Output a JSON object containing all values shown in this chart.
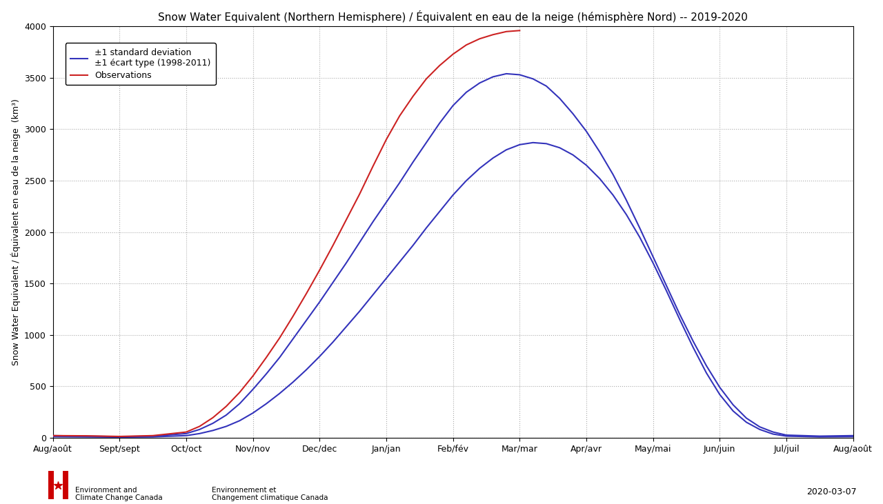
{
  "title": "Snow Water Equivalent (Northern Hemisphere) / Équivalent en eau de la neige (hémisphère Nord) -- 2019-2020",
  "ylabel": "Snow Water Equivalent / Équivalent en eau de la neige  (km³)",
  "ylim": [
    0,
    4000
  ],
  "yticks": [
    0,
    500,
    1000,
    1500,
    2000,
    2500,
    3000,
    3500,
    4000
  ],
  "xtick_labels": [
    "Aug/août",
    "Sept/sept",
    "Oct/oct",
    "Nov/nov",
    "Dec/dec",
    "Jan/jan",
    "Feb/fév",
    "Mar/mar",
    "Apr/avr",
    "May/mai",
    "Jun/juin",
    "Jul/juil",
    "Aug/août"
  ],
  "legend_label_blue": "±1 standard deviation\n±1 écart type (1998-2011)",
  "legend_label_red": "Observations",
  "line_color_blue": "#3333bb",
  "line_color_red": "#cc2222",
  "bg_color": "#ffffff",
  "grid_color": "#aaaaaa",
  "date_label": "2020-03-07",
  "title_fontsize": 11,
  "axis_fontsize": 9,
  "tick_fontsize": 9,
  "x_upper": [
    0,
    0.5,
    1.0,
    1.5,
    2.0,
    2.2,
    2.4,
    2.6,
    2.8,
    3.0,
    3.2,
    3.4,
    3.6,
    3.8,
    4.0,
    4.2,
    4.4,
    4.6,
    4.8,
    5.0,
    5.2,
    5.4,
    5.6,
    5.8,
    6.0,
    6.2,
    6.4,
    6.6,
    6.8,
    7.0,
    7.2,
    7.4,
    7.6,
    7.8,
    8.0,
    8.2,
    8.4,
    8.6,
    8.8,
    9.0,
    9.2,
    9.4,
    9.6,
    9.8,
    10.0,
    10.2,
    10.4,
    10.6,
    10.8,
    11.0,
    11.5,
    12.0
  ],
  "y_upper": [
    20,
    15,
    10,
    15,
    40,
    80,
    140,
    220,
    330,
    470,
    620,
    780,
    960,
    1140,
    1320,
    1510,
    1700,
    1900,
    2100,
    2290,
    2480,
    2680,
    2870,
    3060,
    3230,
    3360,
    3450,
    3510,
    3540,
    3530,
    3490,
    3420,
    3300,
    3150,
    2980,
    2780,
    2560,
    2310,
    2040,
    1760,
    1480,
    1200,
    940,
    700,
    490,
    320,
    190,
    105,
    55,
    25,
    15,
    20
  ],
  "x_lower": [
    0,
    0.5,
    1.0,
    1.5,
    2.0,
    2.2,
    2.4,
    2.6,
    2.8,
    3.0,
    3.2,
    3.4,
    3.6,
    3.8,
    4.0,
    4.2,
    4.4,
    4.6,
    4.8,
    5.0,
    5.2,
    5.4,
    5.6,
    5.8,
    6.0,
    6.2,
    6.4,
    6.6,
    6.8,
    7.0,
    7.2,
    7.4,
    7.6,
    7.8,
    8.0,
    8.2,
    8.4,
    8.6,
    8.8,
    9.0,
    9.2,
    9.4,
    9.6,
    9.8,
    10.0,
    10.2,
    10.4,
    10.6,
    10.8,
    11.0,
    11.5,
    12.0
  ],
  "y_lower": [
    10,
    8,
    5,
    8,
    20,
    40,
    70,
    110,
    165,
    240,
    330,
    430,
    540,
    660,
    790,
    930,
    1080,
    1230,
    1390,
    1550,
    1710,
    1870,
    2040,
    2200,
    2360,
    2500,
    2620,
    2720,
    2800,
    2850,
    2870,
    2860,
    2820,
    2750,
    2650,
    2520,
    2360,
    2170,
    1950,
    1700,
    1430,
    1150,
    880,
    630,
    420,
    260,
    150,
    80,
    35,
    15,
    8,
    10
  ],
  "x_obs": [
    0,
    0.5,
    1.0,
    1.5,
    2.0,
    2.2,
    2.4,
    2.6,
    2.8,
    3.0,
    3.2,
    3.4,
    3.6,
    3.8,
    4.0,
    4.2,
    4.4,
    4.6,
    4.8,
    5.0,
    5.2,
    5.4,
    5.6,
    5.8,
    6.0,
    6.2,
    6.4,
    6.6,
    6.8,
    7.0
  ],
  "y_obs": [
    20,
    18,
    12,
    20,
    55,
    110,
    195,
    305,
    440,
    600,
    780,
    970,
    1180,
    1400,
    1630,
    1870,
    2120,
    2370,
    2640,
    2900,
    3130,
    3320,
    3490,
    3620,
    3730,
    3820,
    3880,
    3920,
    3950,
    3960
  ]
}
